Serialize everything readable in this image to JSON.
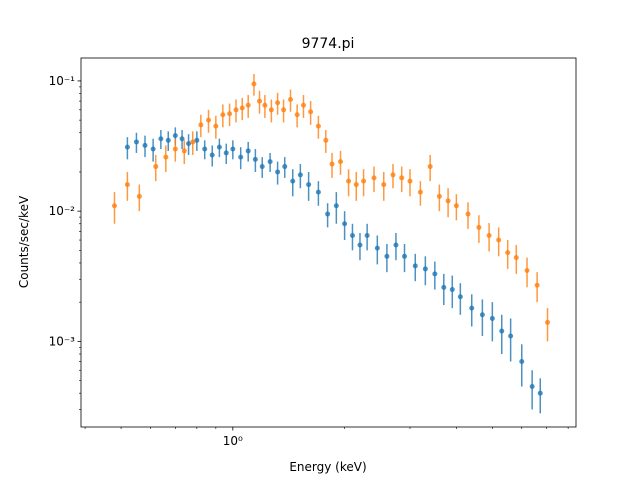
{
  "chart_data": {
    "type": "errorbar",
    "title": "9774.pi",
    "x_label": "Energy (keV)",
    "y_label": "Counts/sec/keV",
    "x_scale": "log",
    "y_scale": "log",
    "xlim": [
      0.39,
      8.4
    ],
    "ylim": [
      0.00022,
      0.15
    ],
    "xticks": [
      {
        "value": 1,
        "label": "10⁰"
      }
    ],
    "yticks": [
      {
        "value": 0.001,
        "label": "10⁻³"
      },
      {
        "value": 0.01,
        "label": "10⁻²"
      },
      {
        "value": 0.1,
        "label": "10⁻¹"
      }
    ],
    "xminor_ticks": [
      0.4,
      0.5,
      0.6,
      0.7,
      0.8,
      0.9,
      2,
      3,
      4,
      5,
      6,
      7,
      8
    ],
    "yminor_ticks": [
      0.0003,
      0.0004,
      0.0005,
      0.0006,
      0.0007,
      0.0008,
      0.0009,
      0.002,
      0.003,
      0.004,
      0.005,
      0.006,
      0.007,
      0.008,
      0.009,
      0.02,
      0.03,
      0.04,
      0.05,
      0.06,
      0.07,
      0.08,
      0.09
    ],
    "series": [
      {
        "color": "#1f77b4",
        "x": [
          0.52,
          0.55,
          0.58,
          0.61,
          0.64,
          0.67,
          0.7,
          0.73,
          0.76,
          0.8,
          0.84,
          0.88,
          0.92,
          0.96,
          1.0,
          1.05,
          1.1,
          1.15,
          1.2,
          1.26,
          1.32,
          1.38,
          1.45,
          1.52,
          1.6,
          1.7,
          1.8,
          1.9,
          2.0,
          2.1,
          2.2,
          2.3,
          2.45,
          2.6,
          2.75,
          2.9,
          3.1,
          3.3,
          3.5,
          3.7,
          3.9,
          4.1,
          4.4,
          4.7,
          5.0,
          5.3,
          5.6,
          6.0,
          6.4,
          6.73
        ],
        "values": [
          0.031,
          0.034,
          0.032,
          0.03,
          0.036,
          0.035,
          0.038,
          0.036,
          0.033,
          0.035,
          0.03,
          0.027,
          0.031,
          0.028,
          0.03,
          0.026,
          0.029,
          0.025,
          0.022,
          0.024,
          0.02,
          0.022,
          0.017,
          0.019,
          0.016,
          0.014,
          0.0095,
          0.011,
          0.008,
          0.0065,
          0.0055,
          0.0065,
          0.0052,
          0.0045,
          0.0055,
          0.0045,
          0.0038,
          0.0036,
          0.0033,
          0.0026,
          0.0025,
          0.0022,
          0.0018,
          0.0016,
          0.0015,
          0.0012,
          0.0011,
          0.0007,
          0.00045,
          0.0004
        ],
        "errors": [
          0.006,
          0.006,
          0.006,
          0.006,
          0.006,
          0.006,
          0.006,
          0.006,
          0.006,
          0.006,
          0.005,
          0.005,
          0.005,
          0.005,
          0.005,
          0.005,
          0.005,
          0.005,
          0.004,
          0.004,
          0.004,
          0.004,
          0.004,
          0.004,
          0.004,
          0.003,
          0.002,
          0.003,
          0.002,
          0.0015,
          0.0013,
          0.0015,
          0.0013,
          0.0011,
          0.0013,
          0.0011,
          0.0009,
          0.0009,
          0.0008,
          0.0007,
          0.0007,
          0.0006,
          0.0005,
          0.0005,
          0.0005,
          0.0004,
          0.0004,
          0.00025,
          0.00015,
          0.00012
        ]
      },
      {
        "color": "#ff7f0e",
        "x": [
          0.48,
          0.52,
          0.56,
          0.62,
          0.66,
          0.7,
          0.74,
          0.78,
          0.82,
          0.86,
          0.9,
          0.94,
          0.98,
          1.02,
          1.06,
          1.1,
          1.14,
          1.18,
          1.22,
          1.27,
          1.32,
          1.37,
          1.43,
          1.49,
          1.55,
          1.62,
          1.7,
          1.78,
          1.85,
          1.95,
          2.05,
          2.15,
          2.25,
          2.4,
          2.55,
          2.7,
          2.85,
          3.0,
          3.2,
          3.4,
          3.6,
          3.8,
          4.0,
          4.3,
          4.6,
          4.9,
          5.2,
          5.5,
          5.8,
          6.2,
          6.6,
          7.04
        ],
        "values": [
          0.011,
          0.016,
          0.013,
          0.022,
          0.026,
          0.03,
          0.029,
          0.034,
          0.046,
          0.05,
          0.045,
          0.055,
          0.056,
          0.06,
          0.062,
          0.065,
          0.095,
          0.07,
          0.065,
          0.06,
          0.068,
          0.06,
          0.072,
          0.055,
          0.065,
          0.058,
          0.045,
          0.035,
          0.023,
          0.024,
          0.017,
          0.016,
          0.017,
          0.018,
          0.016,
          0.019,
          0.018,
          0.017,
          0.014,
          0.022,
          0.013,
          0.012,
          0.011,
          0.0095,
          0.0075,
          0.0065,
          0.006,
          0.0048,
          0.0044,
          0.0035,
          0.0027,
          0.0014
        ],
        "errors": [
          0.003,
          0.004,
          0.003,
          0.005,
          0.006,
          0.006,
          0.006,
          0.007,
          0.009,
          0.01,
          0.009,
          0.011,
          0.011,
          0.012,
          0.012,
          0.013,
          0.018,
          0.014,
          0.013,
          0.012,
          0.013,
          0.012,
          0.014,
          0.011,
          0.013,
          0.012,
          0.009,
          0.007,
          0.005,
          0.005,
          0.004,
          0.004,
          0.004,
          0.004,
          0.004,
          0.004,
          0.004,
          0.004,
          0.003,
          0.005,
          0.003,
          0.003,
          0.0025,
          0.0022,
          0.0018,
          0.0016,
          0.0015,
          0.0012,
          0.0011,
          0.0009,
          0.0007,
          0.0004
        ]
      }
    ]
  }
}
